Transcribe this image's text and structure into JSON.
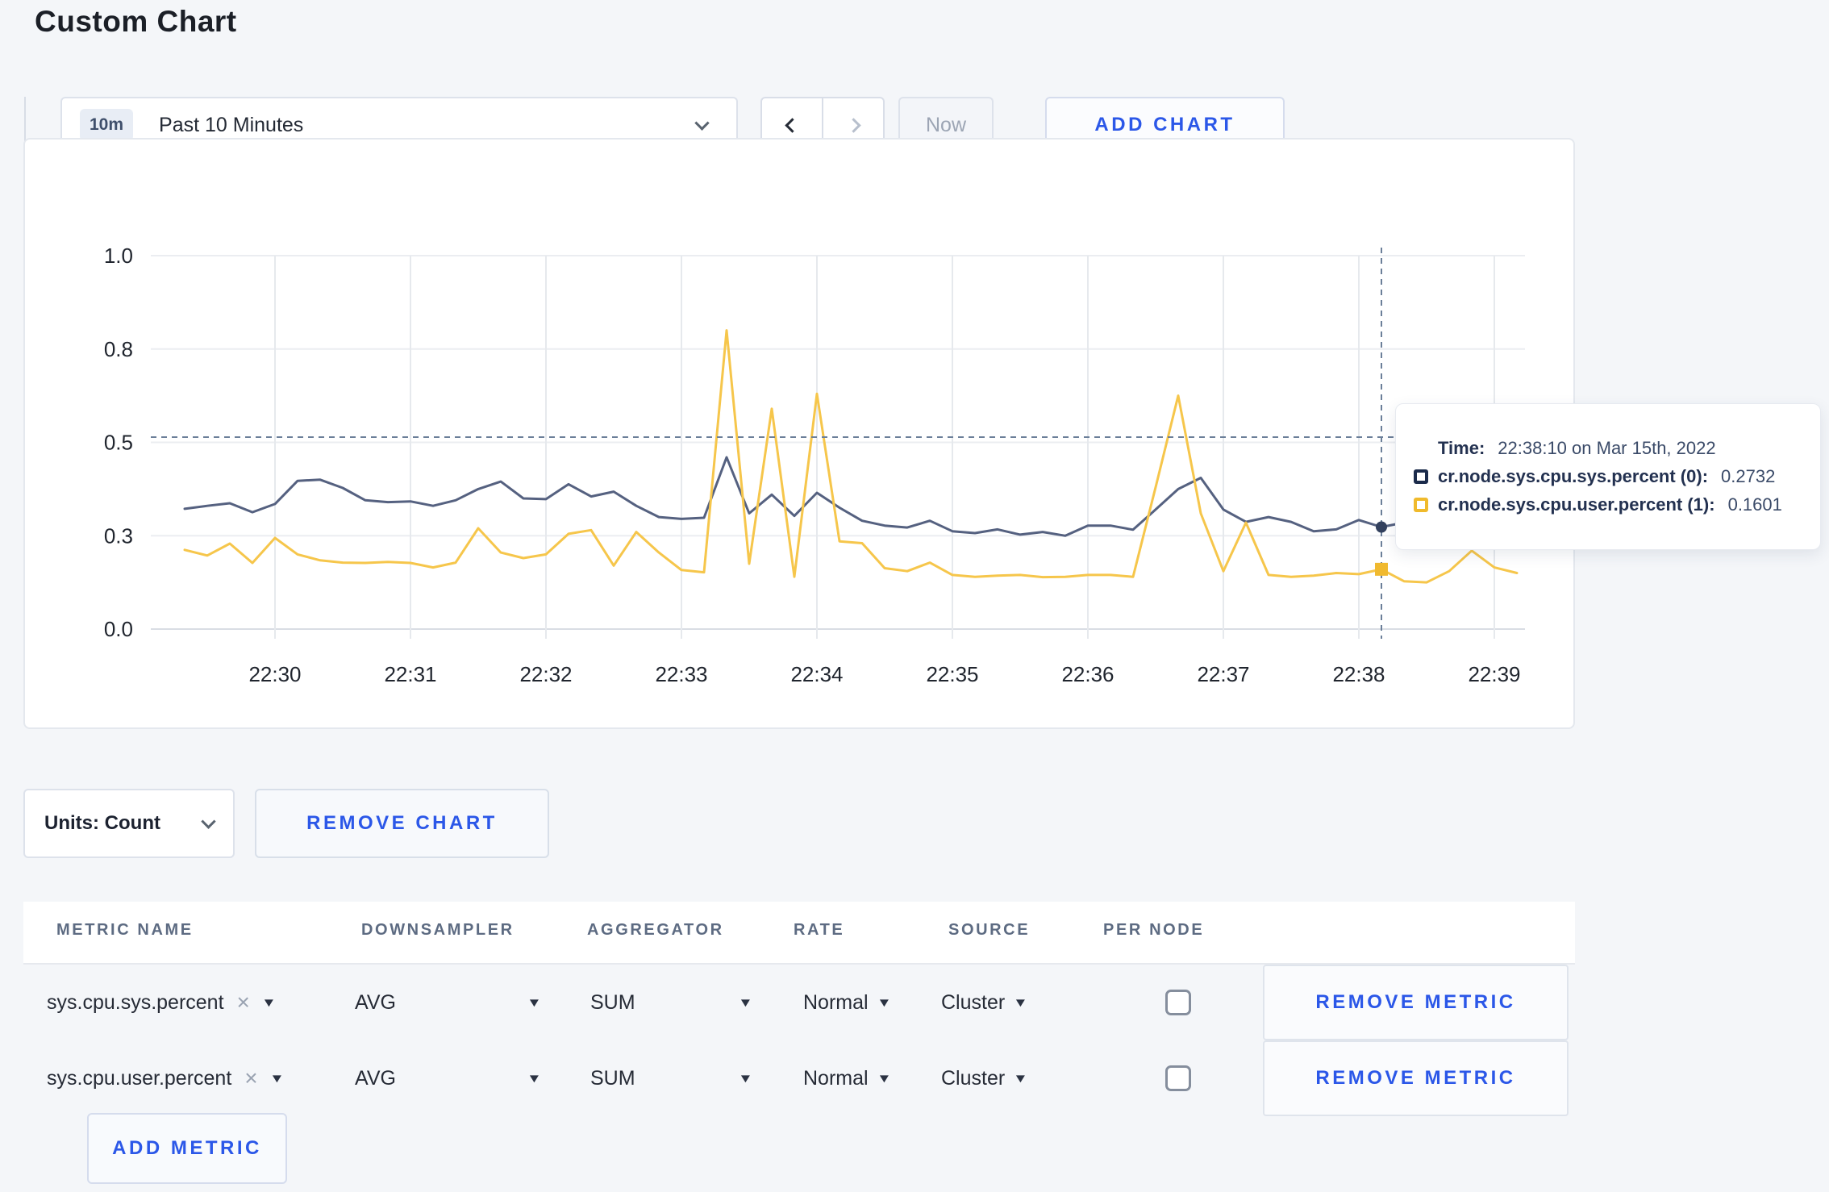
{
  "page": {
    "title": "Custom Chart"
  },
  "toolbar": {
    "time_range_badge": "10m",
    "time_range_label": "Past 10 Minutes",
    "now_label": "Now",
    "add_chart_label": "ADD CHART"
  },
  "units_bar": {
    "units_label": "Units: Count",
    "remove_chart_label": "REMOVE CHART"
  },
  "tooltip": {
    "time_label": "Time:",
    "time_value": "22:38:10 on Mar 15th, 2022",
    "rows": [
      {
        "label": "cr.node.sys.cpu.sys.percent (0):",
        "value": "0.2732",
        "color": "#1b2b4b"
      },
      {
        "label": "cr.node.sys.cpu.user.percent (1):",
        "value": "0.1601",
        "color": "#f0ba2c"
      }
    ]
  },
  "chart_data": {
    "type": "line",
    "title": "",
    "xlabel": "",
    "ylabel": "",
    "grid": true,
    "legend": "tooltip-only",
    "y_axis": {
      "tick_labels": [
        "0.0",
        "0.3",
        "0.5",
        "0.8",
        "1.0"
      ],
      "tick_values": [
        0,
        0.25,
        0.5,
        0.75,
        1.0
      ],
      "range": [
        0,
        1
      ]
    },
    "x_axis": {
      "tick_labels": [
        "22:30",
        "22:31",
        "22:32",
        "22:33",
        "22:34",
        "22:35",
        "22:36",
        "22:37",
        "22:38",
        "22:39"
      ],
      "start_time": "22:29:20",
      "step_seconds": 10
    },
    "x_times": [
      "22:29:20",
      "22:29:30",
      "22:29:40",
      "22:29:50",
      "22:30:00",
      "22:30:10",
      "22:30:20",
      "22:30:30",
      "22:30:40",
      "22:30:50",
      "22:31:00",
      "22:31:10",
      "22:31:20",
      "22:31:30",
      "22:31:40",
      "22:31:50",
      "22:32:00",
      "22:32:10",
      "22:32:20",
      "22:32:30",
      "22:32:40",
      "22:32:50",
      "22:33:00",
      "22:33:10",
      "22:33:20",
      "22:33:30",
      "22:33:40",
      "22:33:50",
      "22:34:00",
      "22:34:10",
      "22:34:20",
      "22:34:30",
      "22:34:40",
      "22:34:50",
      "22:35:00",
      "22:35:10",
      "22:35:20",
      "22:35:30",
      "22:35:40",
      "22:35:50",
      "22:36:00",
      "22:36:10",
      "22:36:20",
      "22:36:30",
      "22:36:40",
      "22:36:50",
      "22:37:00",
      "22:37:10",
      "22:37:20",
      "22:37:30",
      "22:37:40",
      "22:37:50",
      "22:38:00",
      "22:38:10",
      "22:38:20",
      "22:38:30",
      "22:38:40",
      "22:38:50",
      "22:39:00",
      "22:39:10"
    ],
    "series": [
      {
        "name": "cr.node.sys.cpu.sys.percent",
        "color": "#556180",
        "values": [
          0.322,
          0.33,
          0.337,
          0.313,
          0.335,
          0.397,
          0.4,
          0.378,
          0.345,
          0.34,
          0.342,
          0.33,
          0.345,
          0.375,
          0.395,
          0.35,
          0.348,
          0.388,
          0.355,
          0.368,
          0.33,
          0.3,
          0.295,
          0.298,
          0.46,
          0.31,
          0.36,
          0.303,
          0.365,
          0.325,
          0.29,
          0.277,
          0.272,
          0.29,
          0.262,
          0.257,
          0.267,
          0.253,
          0.26,
          0.25,
          0.277,
          0.277,
          0.266,
          0.32,
          0.375,
          0.405,
          0.32,
          0.287,
          0.3,
          0.287,
          0.262,
          0.267,
          0.292,
          0.2732,
          0.285,
          0.28,
          0.285,
          0.285,
          0.28,
          0.285
        ]
      },
      {
        "name": "cr.node.sys.cpu.user.percent",
        "color": "#f6c64b",
        "values": [
          0.212,
          0.197,
          0.229,
          0.177,
          0.244,
          0.2,
          0.184,
          0.178,
          0.177,
          0.18,
          0.177,
          0.165,
          0.178,
          0.27,
          0.205,
          0.19,
          0.2,
          0.255,
          0.265,
          0.17,
          0.26,
          0.205,
          0.158,
          0.152,
          0.8,
          0.175,
          0.59,
          0.14,
          0.63,
          0.235,
          0.23,
          0.163,
          0.155,
          0.178,
          0.145,
          0.14,
          0.143,
          0.145,
          0.139,
          0.14,
          0.145,
          0.145,
          0.14,
          0.38,
          0.625,
          0.31,
          0.155,
          0.285,
          0.145,
          0.14,
          0.143,
          0.15,
          0.147,
          0.1601,
          0.128,
          0.125,
          0.155,
          0.21,
          0.165,
          0.15
        ]
      }
    ],
    "crosshair": {
      "time": "22:38:10",
      "hover_y_value": 0.514
    },
    "hover_points": [
      {
        "series": "cr.node.sys.cpu.sys.percent",
        "value": 0.2732
      },
      {
        "series": "cr.node.sys.cpu.user.percent",
        "value": 0.1601
      }
    ]
  },
  "metrics_table": {
    "headers": [
      "METRIC NAME",
      "DOWNSAMPLER",
      "AGGREGATOR",
      "RATE",
      "SOURCE",
      "PER NODE"
    ],
    "rows": [
      {
        "metric_name": "sys.cpu.sys.percent",
        "downsampler": "AVG",
        "aggregator": "SUM",
        "rate": "Normal",
        "source": "Cluster",
        "per_node_checked": false,
        "remove_label": "REMOVE METRIC"
      },
      {
        "metric_name": "sys.cpu.user.percent",
        "downsampler": "AVG",
        "aggregator": "SUM",
        "rate": "Normal",
        "source": "Cluster",
        "per_node_checked": false,
        "remove_label": "REMOVE METRIC"
      }
    ],
    "add_metric_label": "ADD METRIC"
  },
  "colors": {
    "accent_blue": "#2b57e8",
    "series_sys": "#556180",
    "series_user": "#f6c64b",
    "page_bg": "#f4f6f9"
  }
}
